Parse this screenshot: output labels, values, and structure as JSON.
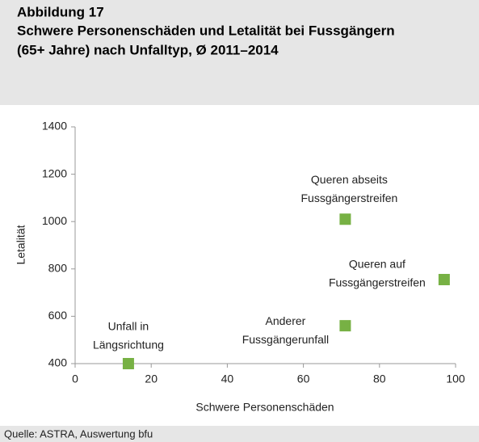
{
  "chart_data": {
    "type": "scatter",
    "figure_label": "Abbildung 17",
    "title_lines": [
      "Schwere Personenschäden und Letalität bei Fussgängern",
      "(65+ Jahre) nach Unfalltyp, Ø 2011–2014"
    ],
    "x_label": "Schwere Personenschäden",
    "y_label": "Letalität",
    "source": "Quelle: ASTRA, Auswertung bfu",
    "color": "#77b144",
    "x": [
      14,
      71,
      97,
      71
    ],
    "values": [
      400,
      1010,
      755,
      560
    ],
    "point_labels": [
      [
        "Unfall in",
        "Längsrichtung"
      ],
      [
        "Queren abseits",
        "Fussgängerstreifen"
      ],
      [
        "Queren auf",
        "Fussgängerstreifen"
      ],
      [
        "Anderer",
        "Fussgängerunfall"
      ]
    ],
    "xlim": [
      0,
      100
    ],
    "xticks": [
      0,
      20,
      40,
      60,
      80,
      100
    ],
    "ylim": [
      400,
      1400
    ],
    "yticks": [
      400,
      600,
      800,
      1000,
      1200,
      1400
    ]
  }
}
